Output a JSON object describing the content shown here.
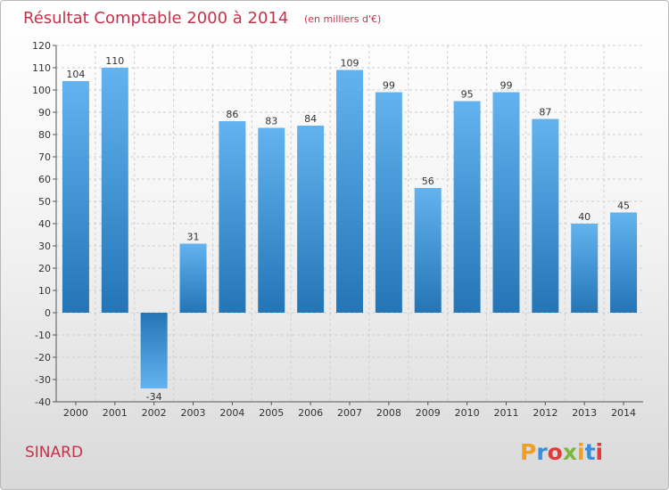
{
  "chart_data": {
    "type": "bar",
    "title": "Résultat Comptable 2000 à 2014",
    "subtitle": "(en milliers d'€)",
    "categories": [
      "2000",
      "2001",
      "2002",
      "2003",
      "2004",
      "2005",
      "2006",
      "2007",
      "2008",
      "2009",
      "2010",
      "2011",
      "2012",
      "2013",
      "2014"
    ],
    "values": [
      104,
      110,
      -34,
      31,
      86,
      83,
      84,
      109,
      99,
      56,
      95,
      99,
      87,
      40,
      45
    ],
    "xlabel": "",
    "ylabel": "",
    "ylim": [
      -40,
      120
    ],
    "yticks": [
      -40,
      -30,
      -20,
      -10,
      0,
      10,
      20,
      30,
      40,
      50,
      60,
      70,
      80,
      90,
      100,
      110,
      120
    ],
    "grid": true,
    "colors": {
      "bar_light": "#62b3ef",
      "bar_dark": "#2475b6",
      "grid": "#cfcfcf",
      "axis": "#555555"
    }
  },
  "commune": "SINARD",
  "brand": {
    "text": "Proxiti",
    "letter_colors": [
      "#f0a020",
      "#3a8fd8",
      "#e03a3a",
      "#7ab840",
      "#f0a020",
      "#3a8fd8",
      "#e03a3a"
    ]
  }
}
